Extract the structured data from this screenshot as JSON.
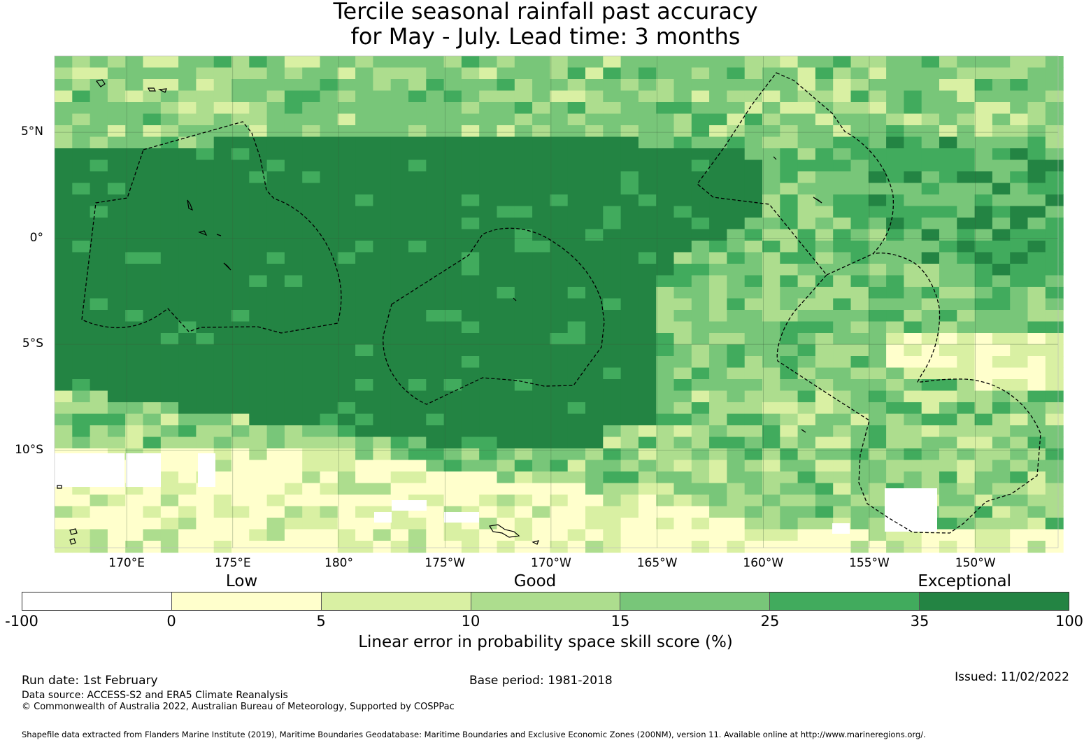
{
  "title": {
    "line1": "Tercile seasonal rainfall past accuracy",
    "line2": "for May - July. Lead time: 3 months"
  },
  "map": {
    "lat_labels": [
      {
        "text": "5°N",
        "lat": 5
      },
      {
        "text": "0°",
        "lat": 0
      },
      {
        "text": "5°S",
        "lat": -5
      },
      {
        "text": "10°S",
        "lat": -10
      }
    ],
    "lon_labels": [
      {
        "text": "170°E",
        "lon": 170
      },
      {
        "text": "175°E",
        "lon": 175
      },
      {
        "text": "180°",
        "lon": 180
      },
      {
        "text": "175°W",
        "lon": 185
      },
      {
        "text": "170°W",
        "lon": 190
      },
      {
        "text": "165°W",
        "lon": 195
      },
      {
        "text": "160°W",
        "lon": 200
      },
      {
        "text": "155°W",
        "lon": 205
      },
      {
        "text": "150°W",
        "lon": 210
      }
    ],
    "lon_range": [
      166.6,
      213.9
    ],
    "lat_range": [
      -14.6,
      8.6
    ],
    "grid": true
  },
  "colorbar": {
    "categories": [
      {
        "text": "Low",
        "position": 0.21
      },
      {
        "text": "Good",
        "position": 0.49
      },
      {
        "text": "Exceptional",
        "position": 0.9
      }
    ],
    "colors": [
      "#ffffff",
      "#ffffcc",
      "#d9f0a3",
      "#addd8e",
      "#78c679",
      "#41ab5d",
      "#238443"
    ],
    "ticks": [
      "-100",
      "0",
      "5",
      "10",
      "15",
      "25",
      "35",
      "100"
    ],
    "label": "Linear error in probability space skill score (%)"
  },
  "footer": {
    "run_date": "Run date: 1st February",
    "base_period": "Base period: 1981-2018",
    "issued": "Issued: 11/02/2022",
    "data_source": "Data source: ACCESS-S2 and ERA5 Climate Reanalysis",
    "copyright": "© Commonwealth of Australia 2022, Australian Bureau of Meteorology, Supported by COSPPac",
    "shapefile": "Shapefile data extracted from Flanders Marine Institute (2019), Maritime Boundaries Geodatabase: Maritime Boundaries and Exclusive Economic Zones (200NM), version 11. Available online at http://www.marineregions.org/."
  }
}
